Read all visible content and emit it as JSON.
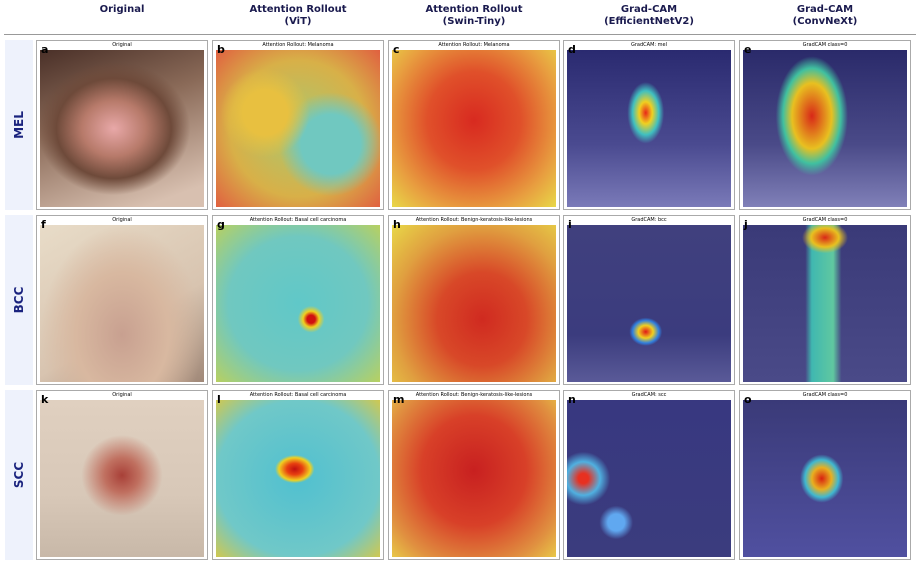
{
  "headers": [
    {
      "title": "Original"
    },
    {
      "title": "Attention Rollout",
      "subtitle": "(ViT)"
    },
    {
      "title": "Attention Rollout",
      "subtitle": "(Swin-Tiny)"
    },
    {
      "title": "Grad-CAM",
      "subtitle": "(EfficientNetV2)"
    },
    {
      "title": "Grad-CAM",
      "subtitle": "(ConvNeXt)"
    }
  ],
  "rows": [
    {
      "label": "MEL",
      "panels": [
        {
          "letter": "a",
          "caption": "Original"
        },
        {
          "letter": "b",
          "caption": "Attention Rollout: Melanoma"
        },
        {
          "letter": "c",
          "caption": "Attention Rollout: Melanoma"
        },
        {
          "letter": "d",
          "caption": "GradCAM: mel"
        },
        {
          "letter": "e",
          "caption": "GradCAM class=0"
        }
      ]
    },
    {
      "label": "BCC",
      "panels": [
        {
          "letter": "f",
          "caption": "Original"
        },
        {
          "letter": "g",
          "caption": "Attention Rollout: Basal cell carcinoma"
        },
        {
          "letter": "h",
          "caption": "Attention Rollout: Benign-keratosis-like-lesions"
        },
        {
          "letter": "i",
          "caption": "GradCAM: bcc"
        },
        {
          "letter": "j",
          "caption": "GradCAM class=0"
        }
      ]
    },
    {
      "label": "SCC",
      "panels": [
        {
          "letter": "k",
          "caption": "Original"
        },
        {
          "letter": "l",
          "caption": "Attention Rollout: Basal cell carcinoma"
        },
        {
          "letter": "m",
          "caption": "Attention Rollout: Benign-keratosis-like-lesions"
        },
        {
          "letter": "n",
          "caption": "GradCAM: scc"
        },
        {
          "letter": "o",
          "caption": "GradCAM class=0"
        }
      ]
    }
  ]
}
